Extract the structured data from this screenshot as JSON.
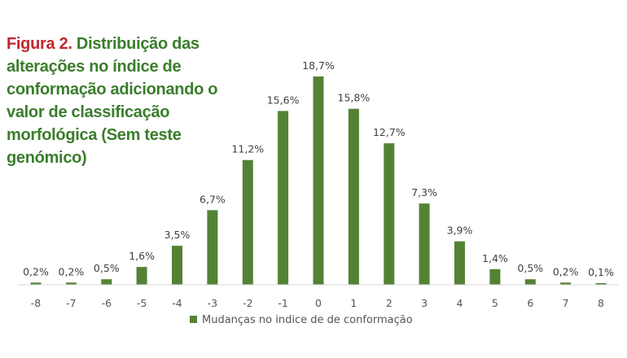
{
  "title": {
    "figure_label": "Figura 2.",
    "text": "Distribuição das alterações no índice de conformação adicionando o valor de classificação morfológica (Sem teste genómico)"
  },
  "colors": {
    "bar": "#548235",
    "title_label": "#c0272d",
    "title_text": "#3a7d2c",
    "axis": "#d9d9d9"
  },
  "chart_data": {
    "type": "bar",
    "categories": [
      "-8",
      "-7",
      "-6",
      "-5",
      "-4",
      "-3",
      "-2",
      "-1",
      "0",
      "1",
      "2",
      "3",
      "4",
      "5",
      "6",
      "7",
      "8"
    ],
    "series": [
      {
        "name": "Mudanças no indice de de conformação",
        "values": [
          0.2,
          0.2,
          0.5,
          1.6,
          3.5,
          6.7,
          11.2,
          15.6,
          18.7,
          15.8,
          12.7,
          7.3,
          3.9,
          1.4,
          0.5,
          0.2,
          0.1
        ]
      }
    ],
    "data_labels": [
      "0,2%",
      "0,2%",
      "0,5%",
      "1,6%",
      "3,5%",
      "6,7%",
      "11,2%",
      "15,6%",
      "18,7%",
      "15,8%",
      "12,7%",
      "7,3%",
      "3,9%",
      "1,4%",
      "0,5%",
      "0,2%",
      "0,1%"
    ],
    "ylim": [
      0,
      18.7
    ],
    "grid": false,
    "legend_position": "bottom"
  }
}
